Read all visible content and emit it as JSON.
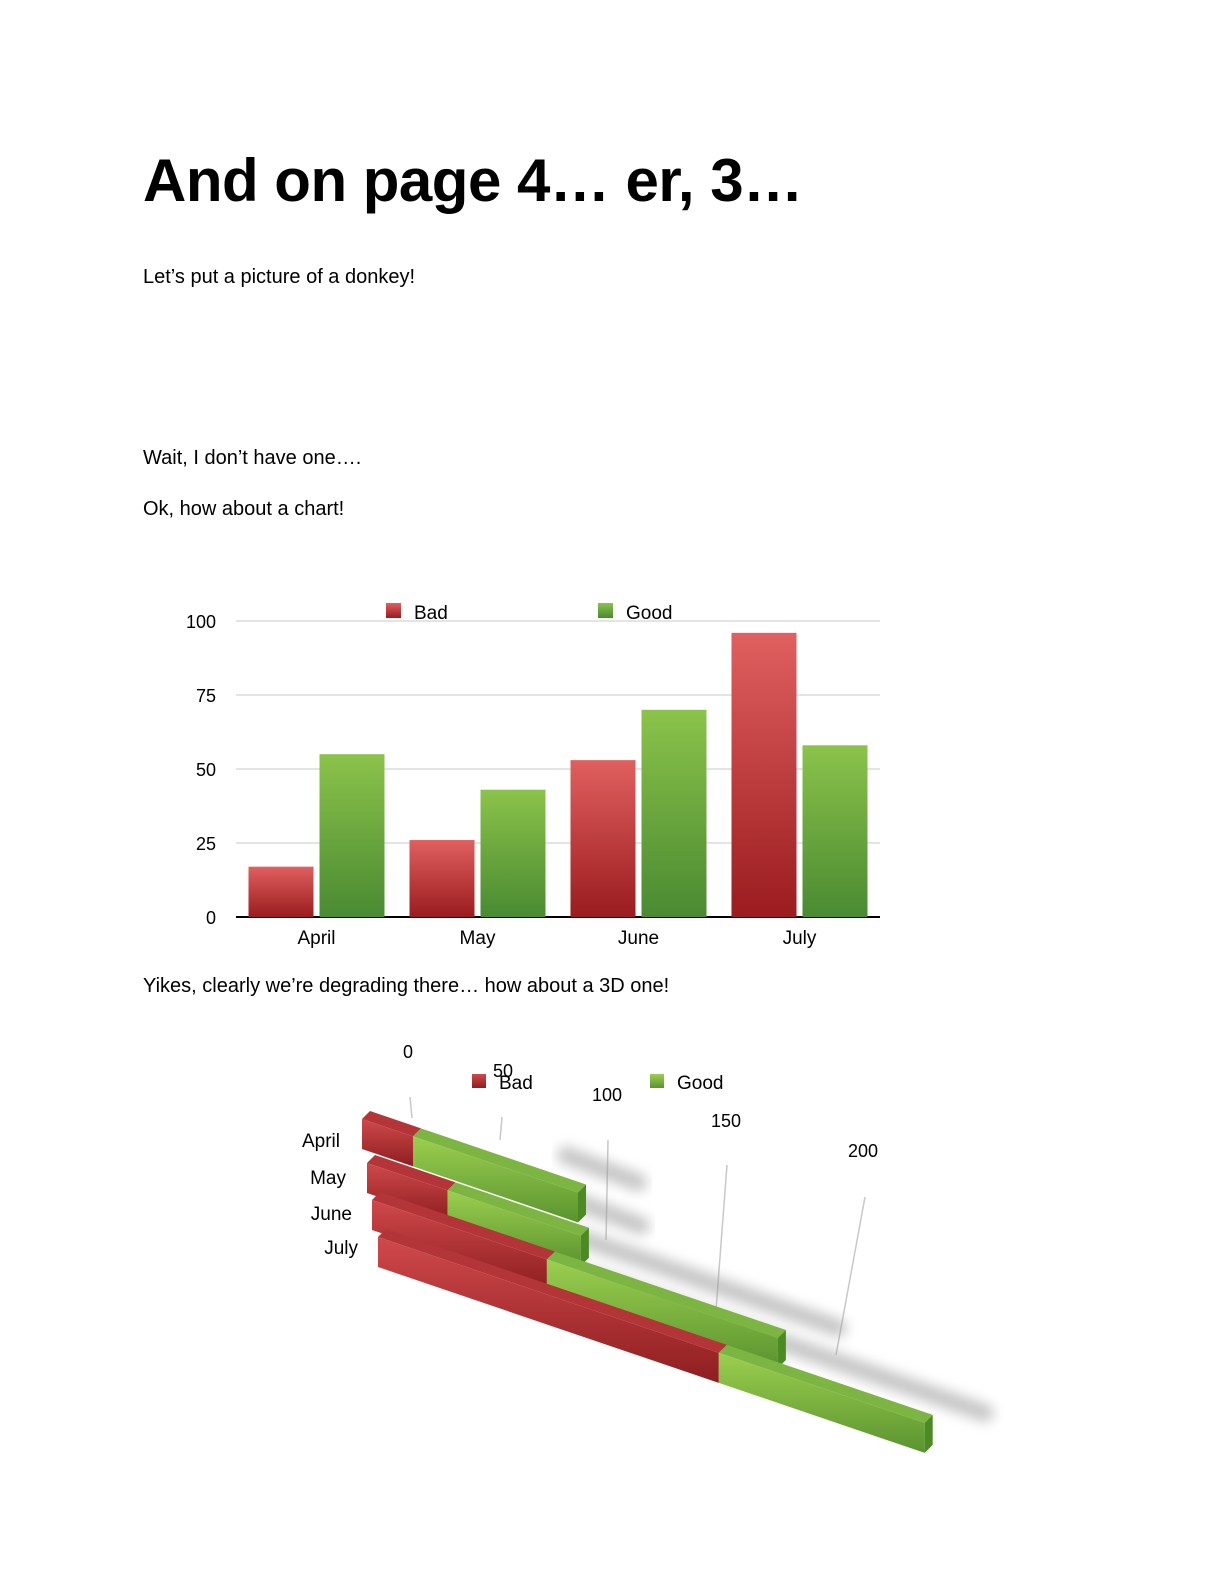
{
  "document": {
    "title": "And on page 4… er, 3…",
    "paragraphs": [
      "Let’s put a picture of a donkey!",
      "Wait, I don’t have one….",
      "Ok, how about a chart!",
      "Yikes, clearly we’re degrading there… how about a 3D one!"
    ]
  },
  "colors": {
    "bad": "#c0393b",
    "good": "#6cad3f",
    "bad_light": "#e06060",
    "good_light": "#8bc34a"
  },
  "chart_data": [
    {
      "type": "bar",
      "title": "",
      "categories": [
        "April",
        "May",
        "June",
        "July"
      ],
      "series": [
        {
          "name": "Bad",
          "values": [
            17,
            26,
            53,
            96
          ]
        },
        {
          "name": "Good",
          "values": [
            55,
            43,
            70,
            58
          ]
        }
      ],
      "yticks": [
        "0",
        "25",
        "50",
        "75",
        "100"
      ],
      "ylim": [
        0,
        100
      ],
      "grid": true,
      "legend": "top"
    },
    {
      "type": "bar",
      "style": "3d-stacked-horizontal",
      "categories": [
        "April",
        "May",
        "June",
        "July"
      ],
      "series": [
        {
          "name": "Bad",
          "values": [
            17,
            26,
            53,
            96
          ]
        },
        {
          "name": "Good",
          "values": [
            55,
            43,
            70,
            58
          ]
        }
      ],
      "xticks": [
        "0",
        "50",
        "100",
        "150",
        "200"
      ],
      "xlim": [
        0,
        200
      ],
      "legend": "top"
    }
  ]
}
